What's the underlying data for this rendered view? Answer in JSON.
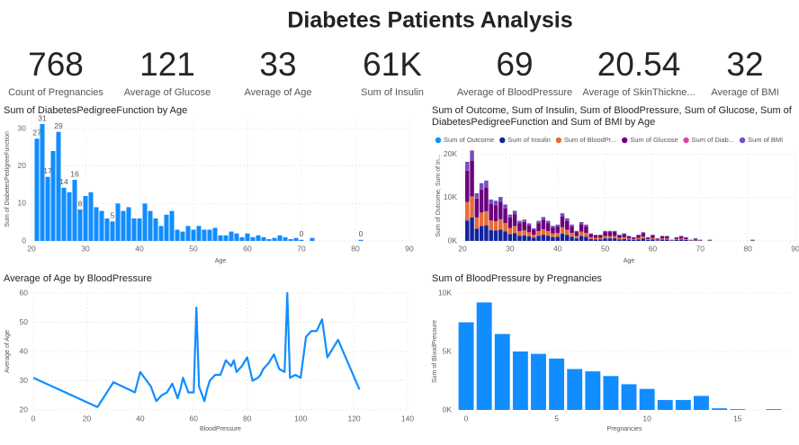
{
  "title": "Diabetes Patients Analysis",
  "kpis": [
    {
      "value": "768",
      "label": "Count of Pregnancies"
    },
    {
      "value": "121",
      "label": "Average of Glucose"
    },
    {
      "value": "33",
      "label": "Average of Age"
    },
    {
      "value": "61K",
      "label": "Sum of Insulin"
    },
    {
      "value": "69",
      "label": "Average of BloodPressure"
    },
    {
      "value": "20.54",
      "label": "Average of SkinThickne..."
    },
    {
      "value": "32",
      "label": "Average of BMI"
    }
  ],
  "chart_data": [
    {
      "type": "bar",
      "title": "Sum of DiabetesPedigreeFunction by Age",
      "x_label": "Age",
      "y_label": "Sum of DiabetesPedigreeFunction",
      "color": "#118DFF",
      "grid": true,
      "x": [
        21,
        22,
        23,
        24,
        25,
        26,
        27,
        28,
        29,
        30,
        31,
        32,
        33,
        34,
        35,
        36,
        37,
        38,
        39,
        40,
        41,
        42,
        43,
        44,
        45,
        46,
        47,
        48,
        49,
        50,
        51,
        52,
        53,
        54,
        55,
        56,
        57,
        58,
        59,
        60,
        61,
        62,
        63,
        64,
        65,
        66,
        67,
        68,
        69,
        70,
        72,
        81
      ],
      "values": [
        27.3,
        31.2,
        17.1,
        24,
        29.1,
        14.2,
        13,
        16.3,
        8.4,
        12,
        13,
        9,
        8,
        6,
        5.2,
        10,
        8,
        9,
        6,
        6,
        10,
        8,
        6,
        4,
        7,
        8,
        3,
        2.5,
        4,
        3,
        4,
        3,
        3,
        3.5,
        1.5,
        1.5,
        2.5,
        2,
        1,
        2,
        1,
        1.5,
        1,
        0.5,
        0.8,
        1.5,
        1,
        0.5,
        0.8,
        0.3,
        0.8,
        0.3
      ],
      "value_labels": [
        "27",
        "31",
        "17",
        null,
        "29",
        "14",
        null,
        "16",
        "8",
        null,
        null,
        null,
        null,
        null,
        "5",
        null,
        null,
        null,
        null,
        null,
        null,
        null,
        null,
        null,
        null,
        null,
        null,
        null,
        null,
        null,
        null,
        null,
        null,
        null,
        null,
        null,
        null,
        null,
        null,
        null,
        null,
        null,
        null,
        null,
        null,
        null,
        null,
        null,
        null,
        "0",
        null,
        "0"
      ],
      "xlim": [
        20,
        90
      ],
      "xticks": [
        20,
        30,
        40,
        50,
        60,
        70,
        80,
        90
      ],
      "ylim": [
        0,
        33
      ],
      "yticks": [
        0,
        10,
        20,
        30
      ]
    },
    {
      "type": "stacked_bar",
      "title": "Sum of Outcome, Sum of Insulin, Sum of BloodPressure, Sum of Glucose, Sum of DiabetesPedigreeFunction and Sum of BMI by Age",
      "x_label": "Age",
      "y_label": "Sum of Outcome, Sum of In...",
      "grid": true,
      "x": [
        21,
        22,
        23,
        24,
        25,
        26,
        27,
        28,
        29,
        30,
        31,
        32,
        33,
        34,
        35,
        36,
        37,
        38,
        39,
        40,
        41,
        42,
        43,
        44,
        45,
        46,
        47,
        48,
        49,
        50,
        51,
        52,
        53,
        54,
        55,
        56,
        57,
        58,
        59,
        60,
        61,
        62,
        63,
        64,
        65,
        66,
        67,
        68,
        69,
        70,
        72,
        81
      ],
      "series": [
        {
          "name": "Sum of Outcome",
          "color": "#118DFF",
          "values": [
            5,
            11,
            7,
            8,
            14,
            8,
            8,
            9,
            13,
            6,
            11,
            9,
            8,
            4,
            5,
            6,
            6,
            6,
            4,
            6,
            9,
            5,
            11,
            5,
            7,
            7,
            4,
            1,
            3,
            5,
            3,
            7,
            4,
            4,
            1,
            1,
            1,
            3,
            2,
            2,
            1,
            2,
            0,
            0,
            0,
            2,
            2,
            0,
            0,
            1,
            0,
            0
          ]
        },
        {
          "name": "Sum of Insulin",
          "color": "#12239E",
          "values": [
            4725,
            5400,
            2850,
            3450,
            3600,
            2475,
            2400,
            2625,
            2175,
            1575,
            1800,
            1200,
            1275,
            1050,
            750,
            1200,
            1425,
            1200,
            900,
            975,
            1650,
            1350,
            975,
            600,
            1125,
            975,
            450,
            375,
            375,
            600,
            600,
            600,
            375,
            450,
            300,
            225,
            375,
            525,
            225,
            375,
            150,
            300,
            300,
            75,
            225,
            300,
            225,
            75,
            150,
            75,
            75,
            75
          ]
        },
        {
          "name": "Sum of BloodPr...",
          "color": "#E66C37",
          "values": [
            4284,
            4896,
            2584,
            3128,
            3264,
            2244,
            2176,
            2380,
            1972,
            1428,
            1632,
            1088,
            1156,
            952,
            680,
            1088,
            1292,
            1088,
            816,
            884,
            1496,
            1224,
            884,
            544,
            1020,
            884,
            408,
            340,
            340,
            544,
            544,
            544,
            340,
            408,
            272,
            204,
            340,
            476,
            204,
            340,
            136,
            272,
            272,
            68,
            204,
            272,
            204,
            68,
            136,
            68,
            68,
            68
          ]
        },
        {
          "name": "Sum of Glucose",
          "color": "#6B007B",
          "values": [
            7245,
            8280,
            4370,
            5290,
            5520,
            3795,
            3680,
            4025,
            3335,
            2415,
            2760,
            1840,
            1955,
            1610,
            1150,
            1840,
            2185,
            1840,
            1380,
            1495,
            2530,
            2070,
            1495,
            920,
            1725,
            1495,
            690,
            575,
            575,
            920,
            920,
            920,
            575,
            690,
            460,
            345,
            575,
            805,
            345,
            575,
            230,
            460,
            460,
            115,
            345,
            460,
            345,
            115,
            230,
            115,
            115,
            115
          ]
        },
        {
          "name": "Sum of Diab...",
          "color": "#E044A7",
          "values": [
            27.3,
            31.2,
            17.1,
            24,
            29.1,
            14.2,
            13,
            16.3,
            8.4,
            12,
            13,
            9,
            8,
            6,
            5.2,
            10,
            8,
            9,
            6,
            6,
            10,
            8,
            6,
            4,
            7,
            8,
            3,
            2.5,
            4,
            3,
            4,
            3,
            3,
            3.5,
            1.5,
            1.5,
            2.5,
            2,
            1,
            2,
            1,
            1.5,
            1,
            0.5,
            0.8,
            1.5,
            1,
            0.5,
            0.8,
            0.3,
            0.8,
            0.3
          ]
        },
        {
          "name": "Sum of BMI",
          "color": "#744EC2",
          "values": [
            2016,
            2304,
            1216,
            1472,
            1536,
            1056,
            1024,
            1120,
            928,
            672,
            768,
            512,
            544,
            448,
            320,
            512,
            608,
            512,
            384,
            416,
            704,
            576,
            416,
            256,
            480,
            416,
            192,
            160,
            160,
            256,
            256,
            256,
            160,
            192,
            128,
            96,
            160,
            224,
            96,
            160,
            64,
            128,
            128,
            32,
            96,
            128,
            96,
            32,
            64,
            32,
            32,
            32
          ]
        }
      ],
      "xlim": [
        20,
        90
      ],
      "xticks": [
        20,
        30,
        40,
        50,
        60,
        70,
        80,
        90
      ],
      "ylim": [
        0,
        21000
      ],
      "yticks": [
        {
          "value": 0,
          "label": "0K"
        },
        {
          "value": 10000,
          "label": "10K"
        },
        {
          "value": 20000,
          "label": "20K"
        }
      ]
    },
    {
      "type": "line",
      "title": "Average of Age by BloodPressure",
      "x_label": "BloodPressure",
      "y_label": "Average of Age",
      "color": "#118DFF",
      "grid": true,
      "x": [
        0,
        24,
        30,
        38,
        40,
        44,
        46,
        48,
        50,
        52,
        54,
        55,
        56,
        58,
        60,
        61,
        62,
        64,
        65,
        66,
        68,
        70,
        72,
        74,
        75,
        76,
        78,
        80,
        82,
        84,
        85,
        86,
        88,
        90,
        92,
        94,
        95,
        96,
        98,
        100,
        102,
        104,
        106,
        108,
        110,
        114,
        122
      ],
      "values": [
        31,
        21,
        29.5,
        26,
        33,
        28,
        23,
        25,
        26,
        29,
        24,
        27,
        31,
        26,
        26,
        55,
        28,
        23,
        27,
        30,
        32,
        32,
        37,
        35,
        37,
        33,
        35,
        38,
        30,
        31,
        32,
        34,
        36,
        39,
        34,
        33,
        60,
        31,
        32,
        31,
        45,
        47,
        47,
        51,
        38,
        44,
        27
      ],
      "xlim": [
        0,
        140
      ],
      "xticks": [
        0,
        20,
        40,
        60,
        80,
        100,
        120,
        140
      ],
      "ylim": [
        20,
        60
      ],
      "yticks": [
        20,
        30,
        40,
        50,
        60
      ]
    },
    {
      "type": "bar",
      "title": "Sum of BloodPressure by Pregnancies",
      "x_label": "Pregnancies",
      "y_label": "Sum of BloodPressure",
      "color": "#118DFF",
      "grid": true,
      "x": [
        0,
        1,
        2,
        3,
        4,
        5,
        6,
        7,
        8,
        9,
        10,
        11,
        12,
        13,
        14,
        15,
        17
      ],
      "values": [
        7500,
        9200,
        6500,
        5000,
        4800,
        4400,
        3500,
        3300,
        2900,
        2200,
        1800,
        850,
        850,
        1200,
        140,
        70,
        70
      ],
      "xlim": [
        -0.5,
        18
      ],
      "xticks": [
        0,
        5,
        10,
        15
      ],
      "ylim": [
        0,
        10000
      ],
      "yticks": [
        {
          "value": 0,
          "label": "0K"
        },
        {
          "value": 5000,
          "label": "5K"
        },
        {
          "value": 10000,
          "label": "10K"
        }
      ]
    }
  ]
}
